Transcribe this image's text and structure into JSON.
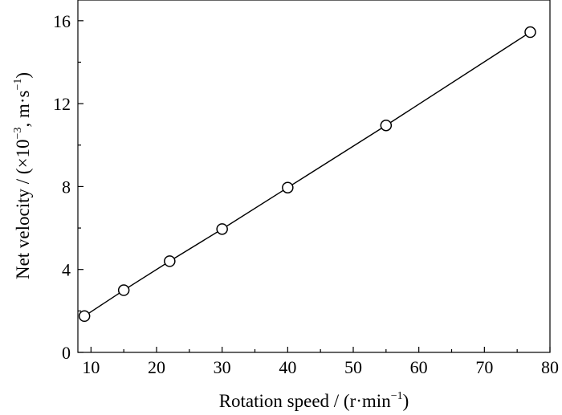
{
  "chart_data": {
    "type": "line",
    "title": "",
    "xlabel": "Rotation speed / (r·min",
    "xlabel_sup": "−1",
    "xlabel_close": ")",
    "ylabel": "Net velocity / (×10",
    "ylabel_sup1": "−3",
    "ylabel_mid": ", m·s",
    "ylabel_sup2": "−1",
    "ylabel_close": ")",
    "xlim": [
      8,
      80
    ],
    "ylim": [
      0,
      17
    ],
    "xticks": [
      10,
      20,
      30,
      40,
      50,
      60,
      70,
      80
    ],
    "yticks": [
      0,
      4,
      8,
      12,
      16
    ],
    "grid": false,
    "series": [
      {
        "marker": "open-circle",
        "line": "solid",
        "color": "#000000",
        "x": [
          9,
          15,
          22,
          30,
          40,
          55,
          77
        ],
        "y": [
          1.75,
          3.0,
          4.4,
          5.95,
          7.95,
          10.95,
          15.45
        ]
      }
    ]
  }
}
